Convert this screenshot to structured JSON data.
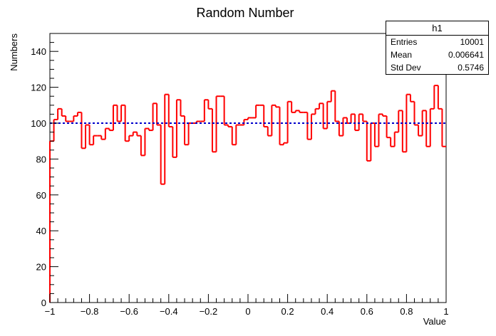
{
  "chart_data": {
    "type": "histogram",
    "title": "Random Number",
    "xlabel": "Value",
    "ylabel": "Numbers",
    "xlim": [
      -1,
      1
    ],
    "ylim": [
      0,
      150
    ],
    "x_ticks": [
      "−1",
      "−0.8",
      "−0.6",
      "−0.4",
      "−0.2",
      "0",
      "0.2",
      "0.4",
      "0.6",
      "0.8",
      "1"
    ],
    "y_ticks": [
      "0",
      "20",
      "40",
      "60",
      "80",
      "100",
      "120",
      "140"
    ],
    "bin_width": 0.02,
    "values": [
      90,
      102,
      108,
      104,
      101,
      101,
      104,
      106,
      86,
      99,
      88,
      93,
      93,
      91,
      97,
      96,
      110,
      101,
      110,
      90,
      93,
      95,
      93,
      82,
      97,
      96,
      111,
      99,
      66,
      116,
      98,
      81,
      113,
      104,
      88,
      100,
      100,
      101,
      101,
      113,
      108,
      84,
      115,
      115,
      99,
      98,
      88,
      99,
      99,
      102,
      103,
      103,
      110,
      110,
      98,
      93,
      110,
      109,
      88,
      89,
      112,
      106,
      107,
      106,
      106,
      91,
      105,
      108,
      111,
      97,
      112,
      118,
      101,
      93,
      103,
      100,
      105,
      96,
      105,
      101,
      79,
      100,
      87,
      105,
      104,
      92,
      87,
      95,
      107,
      84,
      116,
      112,
      99,
      93,
      107,
      87,
      108,
      121,
      108,
      87
    ],
    "reference_line": {
      "y": 100,
      "color": "#0000cc",
      "style": "dotted"
    },
    "histogram_color": "#ff0000",
    "legend": "top-right",
    "stats": {
      "name": "h1",
      "rows": [
        {
          "label": "Entries",
          "value": "10001"
        },
        {
          "label": "Mean",
          "value": "0.006641"
        },
        {
          "label": "Std Dev",
          "value": "0.5746"
        }
      ]
    }
  }
}
